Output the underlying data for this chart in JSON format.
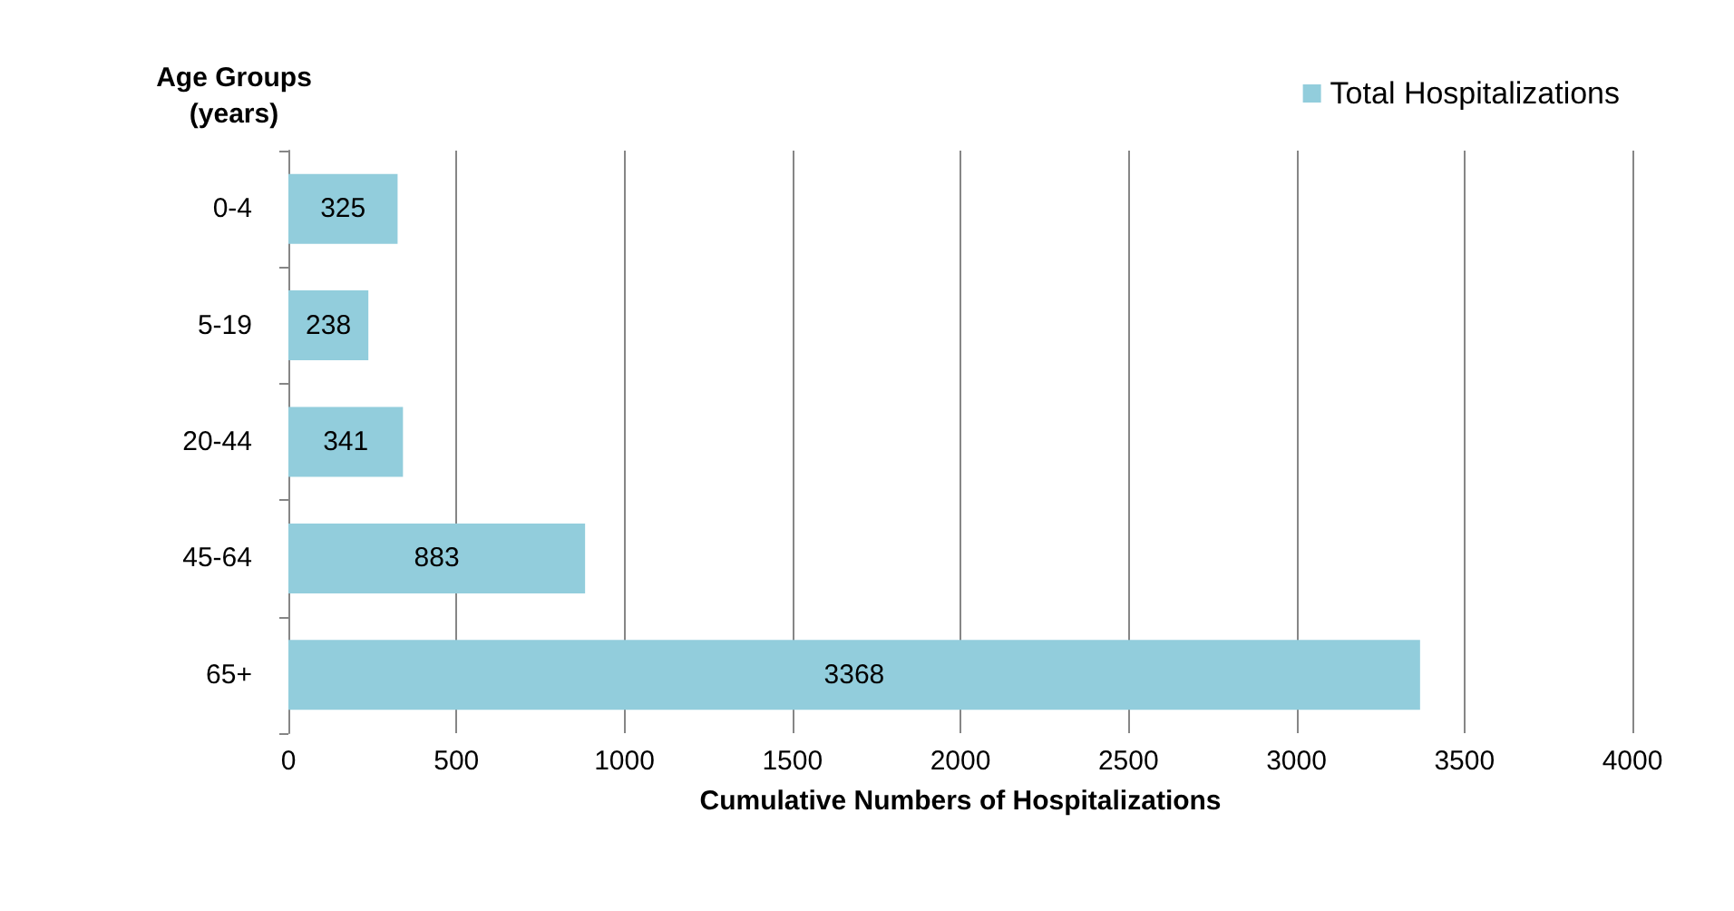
{
  "chart_data": {
    "type": "bar",
    "orientation": "horizontal",
    "xlabel": "Cumulative Numbers of Hospitalizations",
    "ylabel": "Age Groups\n(years)",
    "categories": [
      "0-4",
      "5-19",
      "20-44",
      "45-64",
      "65+"
    ],
    "series": [
      {
        "name": "Total Hospitalizations",
        "color": "#92cddc",
        "values": [
          325,
          238,
          341,
          883,
          3368
        ]
      }
    ],
    "xlim": [
      0,
      4000
    ],
    "xticks": [
      0,
      500,
      1000,
      1500,
      2000,
      2500,
      3000,
      3500,
      4000
    ],
    "grid": "x",
    "legend": "top right",
    "data_labels": true
  }
}
